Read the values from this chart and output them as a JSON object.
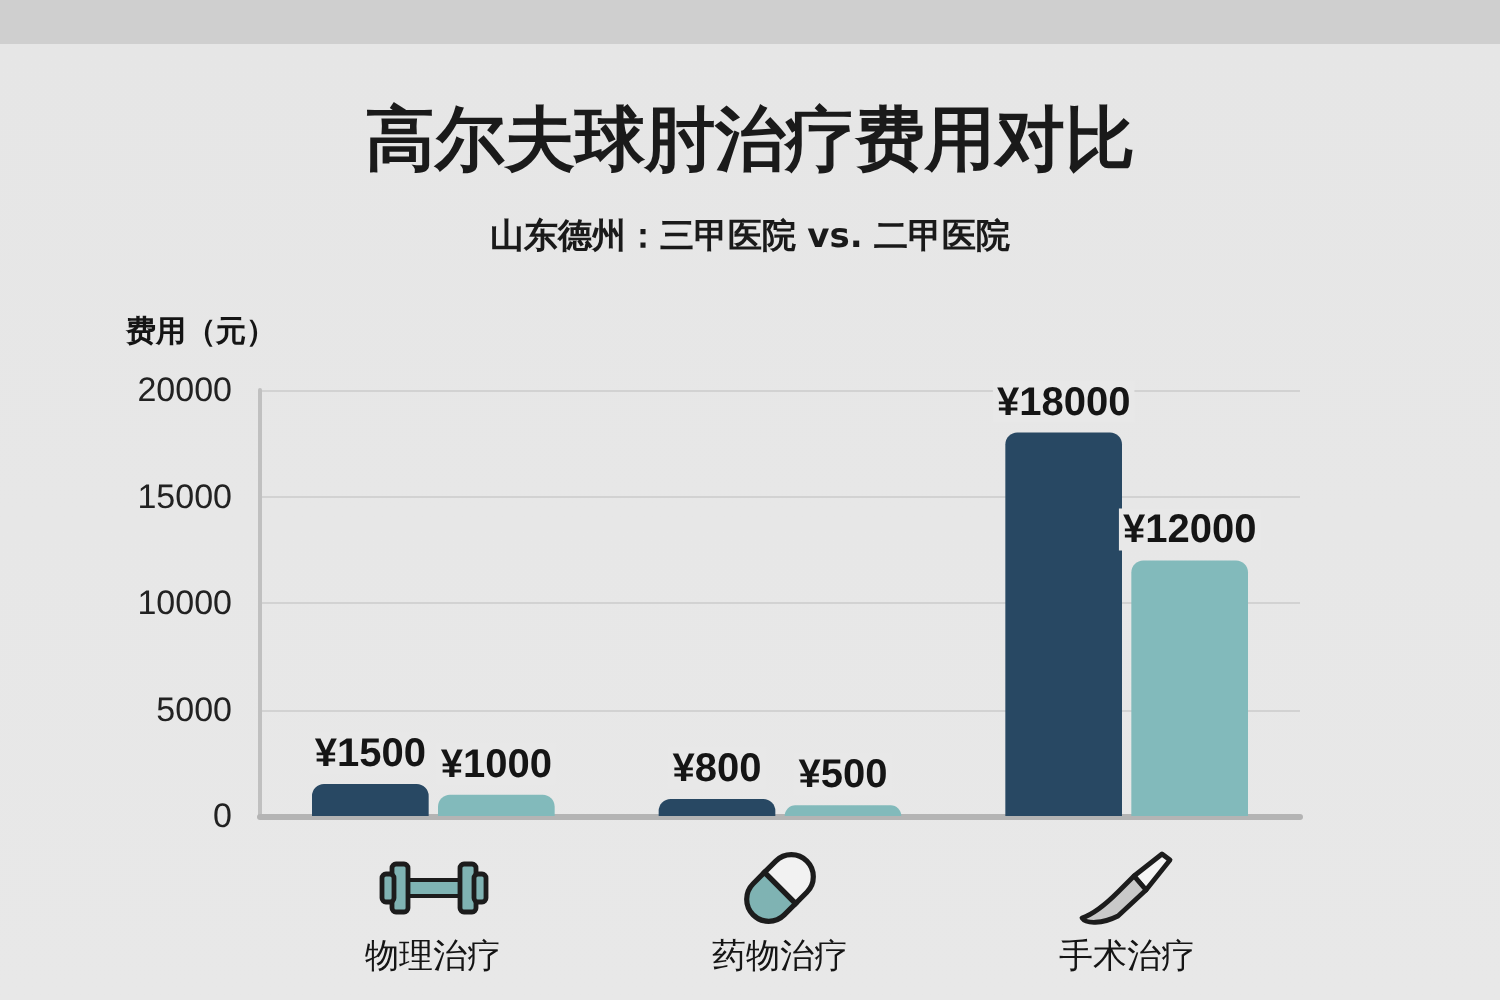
{
  "chart_data": {
    "type": "bar",
    "title": "高尔夫球肘治疗费用对比",
    "subtitle": "山东德州：三甲医院 vs. 二甲医院",
    "ylabel": "费用（元）",
    "categories": [
      "物理治疗",
      "药物治疗",
      "手术治疗"
    ],
    "series": [
      {
        "color": "#284863",
        "values": [
          1500,
          800,
          18000
        ],
        "value_labels": [
          "¥1500",
          "¥800",
          "¥18000"
        ]
      },
      {
        "color": "#82babb",
        "values": [
          1000,
          500,
          12000
        ],
        "value_labels": [
          "¥1000",
          "¥500",
          "¥12000"
        ]
      }
    ],
    "ylim": [
      0,
      20000
    ],
    "yticks": [
      0,
      5000,
      10000,
      15000,
      20000
    ],
    "grid": "y"
  }
}
